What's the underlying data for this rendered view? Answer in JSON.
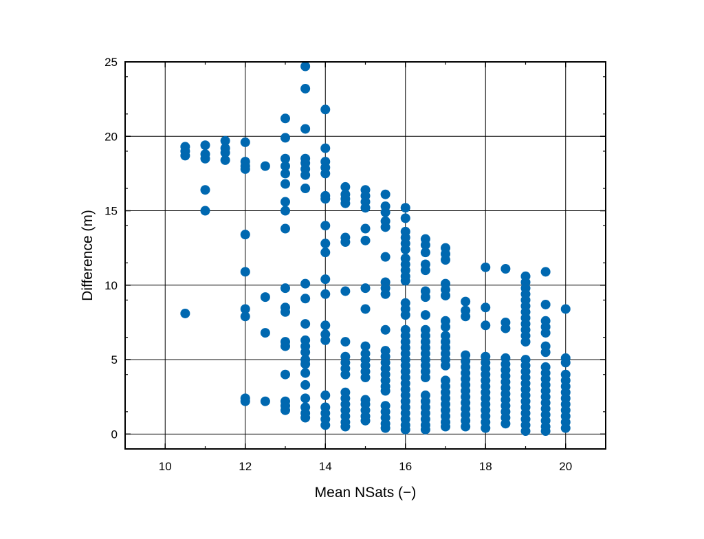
{
  "chart_data": {
    "type": "scatter",
    "title": "",
    "xlabel": "Mean NSats (−)",
    "ylabel": "Difference (m)",
    "xlim": [
      9,
      21
    ],
    "ylim": [
      -1,
      25
    ],
    "xticks": [
      10,
      12,
      14,
      16,
      18,
      20
    ],
    "yticks": [
      0,
      5,
      10,
      15,
      20,
      25
    ],
    "xtick_labels": [
      "10",
      "12",
      "14",
      "16",
      "18",
      "20"
    ],
    "ytick_labels": [
      "0",
      "5",
      "10",
      "15",
      "20",
      "25"
    ],
    "grid": true,
    "marker_color": "#0068b0",
    "series": [
      {
        "points": [
          [
            10.5,
            19.3
          ],
          [
            10.5,
            19.0
          ],
          [
            10.5,
            18.7
          ],
          [
            10.5,
            8.1
          ],
          [
            11,
            19.4
          ],
          [
            11,
            18.8
          ],
          [
            11,
            18.5
          ],
          [
            11,
            16.4
          ],
          [
            11,
            15.0
          ],
          [
            11.5,
            19.7
          ],
          [
            11.5,
            19.2
          ],
          [
            11.5,
            18.9
          ],
          [
            11.5,
            18.4
          ],
          [
            12,
            19.6
          ],
          [
            12,
            18.3
          ],
          [
            12,
            18.0
          ],
          [
            12,
            17.8
          ],
          [
            12,
            13.4
          ],
          [
            12,
            10.9
          ],
          [
            12,
            8.4
          ],
          [
            12,
            7.9
          ],
          [
            12,
            2.4
          ],
          [
            12,
            2.2
          ],
          [
            12.5,
            18.0
          ],
          [
            12.5,
            9.2
          ],
          [
            12.5,
            6.8
          ],
          [
            12.5,
            2.2
          ],
          [
            13,
            21.2
          ],
          [
            13,
            19.9
          ],
          [
            13,
            18.5
          ],
          [
            13,
            18.0
          ],
          [
            13,
            17.5
          ],
          [
            13,
            16.8
          ],
          [
            13,
            15.6
          ],
          [
            13,
            15.0
          ],
          [
            13,
            13.8
          ],
          [
            13,
            9.8
          ],
          [
            13,
            8.5
          ],
          [
            13,
            8.2
          ],
          [
            13,
            6.2
          ],
          [
            13,
            5.9
          ],
          [
            13,
            4.0
          ],
          [
            13,
            2.2
          ],
          [
            13,
            1.9
          ],
          [
            13,
            1.6
          ],
          [
            13.5,
            24.7
          ],
          [
            13.5,
            23.2
          ],
          [
            13.5,
            20.5
          ],
          [
            13.5,
            18.5
          ],
          [
            13.5,
            18.2
          ],
          [
            13.5,
            17.8
          ],
          [
            13.5,
            17.4
          ],
          [
            13.5,
            16.5
          ],
          [
            13.5,
            10.1
          ],
          [
            13.5,
            9.1
          ],
          [
            13.5,
            7.4
          ],
          [
            13.5,
            6.3
          ],
          [
            13.5,
            5.9
          ],
          [
            13.5,
            5.5
          ],
          [
            13.5,
            5.0
          ],
          [
            13.5,
            4.7
          ],
          [
            13.5,
            4.1
          ],
          [
            13.5,
            3.3
          ],
          [
            13.5,
            2.4
          ],
          [
            13.5,
            1.8
          ],
          [
            13.5,
            1.4
          ],
          [
            13.5,
            1.1
          ],
          [
            14,
            21.8
          ],
          [
            14,
            19.2
          ],
          [
            14,
            18.3
          ],
          [
            14,
            17.9
          ],
          [
            14,
            17.5
          ],
          [
            14,
            16.0
          ],
          [
            14,
            15.8
          ],
          [
            14,
            14.0
          ],
          [
            14,
            12.8
          ],
          [
            14,
            12.2
          ],
          [
            14,
            10.4
          ],
          [
            14,
            9.4
          ],
          [
            14,
            7.3
          ],
          [
            14,
            6.7
          ],
          [
            14,
            6.3
          ],
          [
            14,
            2.6
          ],
          [
            14,
            1.8
          ],
          [
            14,
            1.4
          ],
          [
            14,
            1.0
          ],
          [
            14,
            0.6
          ],
          [
            14.5,
            16.6
          ],
          [
            14.5,
            16.1
          ],
          [
            14.5,
            15.8
          ],
          [
            14.5,
            15.5
          ],
          [
            14.5,
            13.2
          ],
          [
            14.5,
            12.9
          ],
          [
            14.5,
            9.6
          ],
          [
            14.5,
            6.2
          ],
          [
            14.5,
            5.2
          ],
          [
            14.5,
            4.8
          ],
          [
            14.5,
            4.4
          ],
          [
            14.5,
            4.0
          ],
          [
            14.5,
            2.8
          ],
          [
            14.5,
            2.4
          ],
          [
            14.5,
            2.0
          ],
          [
            14.5,
            1.6
          ],
          [
            14.5,
            1.2
          ],
          [
            14.5,
            0.8
          ],
          [
            14.5,
            0.5
          ],
          [
            15,
            16.4
          ],
          [
            15,
            16.0
          ],
          [
            15,
            15.6
          ],
          [
            15,
            15.2
          ],
          [
            15,
            13.8
          ],
          [
            15,
            13.0
          ],
          [
            15,
            9.8
          ],
          [
            15,
            8.4
          ],
          [
            15,
            5.9
          ],
          [
            15,
            5.4
          ],
          [
            15,
            5.0
          ],
          [
            15,
            4.6
          ],
          [
            15,
            4.2
          ],
          [
            15,
            3.8
          ],
          [
            15,
            2.3
          ],
          [
            15,
            2.0
          ],
          [
            15,
            1.6
          ],
          [
            15,
            1.2
          ],
          [
            15,
            0.9
          ],
          [
            15.5,
            16.1
          ],
          [
            15.5,
            15.3
          ],
          [
            15.5,
            14.9
          ],
          [
            15.5,
            14.3
          ],
          [
            15.5,
            13.9
          ],
          [
            15.5,
            11.9
          ],
          [
            15.5,
            10.2
          ],
          [
            15.5,
            9.8
          ],
          [
            15.5,
            9.4
          ],
          [
            15.5,
            7.0
          ],
          [
            15.5,
            5.6
          ],
          [
            15.5,
            5.2
          ],
          [
            15.5,
            4.8
          ],
          [
            15.5,
            4.4
          ],
          [
            15.5,
            4.0
          ],
          [
            15.5,
            3.6
          ],
          [
            15.5,
            3.2
          ],
          [
            15.5,
            2.9
          ],
          [
            15.5,
            1.9
          ],
          [
            15.5,
            1.5
          ],
          [
            15.5,
            1.1
          ],
          [
            15.5,
            0.7
          ],
          [
            15.5,
            0.4
          ],
          [
            16,
            15.2
          ],
          [
            16,
            14.5
          ],
          [
            16,
            13.6
          ],
          [
            16,
            13.2
          ],
          [
            16,
            12.8
          ],
          [
            16,
            12.4
          ],
          [
            16,
            11.8
          ],
          [
            16,
            11.4
          ],
          [
            16,
            11.0
          ],
          [
            16,
            10.6
          ],
          [
            16,
            10.3
          ],
          [
            16,
            8.8
          ],
          [
            16,
            8.4
          ],
          [
            16,
            8.0
          ],
          [
            16,
            7.0
          ],
          [
            16,
            6.6
          ],
          [
            16,
            6.2
          ],
          [
            16,
            5.8
          ],
          [
            16,
            5.4
          ],
          [
            16,
            5.0
          ],
          [
            16,
            4.6
          ],
          [
            16,
            4.2
          ],
          [
            16,
            3.8
          ],
          [
            16,
            3.4
          ],
          [
            16,
            3.0
          ],
          [
            16,
            2.6
          ],
          [
            16,
            2.2
          ],
          [
            16,
            1.8
          ],
          [
            16,
            1.4
          ],
          [
            16,
            1.0
          ],
          [
            16,
            0.6
          ],
          [
            16,
            0.3
          ],
          [
            16.5,
            13.1
          ],
          [
            16.5,
            12.7
          ],
          [
            16.5,
            12.2
          ],
          [
            16.5,
            11.4
          ],
          [
            16.5,
            11.0
          ],
          [
            16.5,
            9.6
          ],
          [
            16.5,
            9.2
          ],
          [
            16.5,
            8.0
          ],
          [
            16.5,
            7.0
          ],
          [
            16.5,
            6.6
          ],
          [
            16.5,
            6.2
          ],
          [
            16.5,
            5.8
          ],
          [
            16.5,
            5.4
          ],
          [
            16.5,
            5.0
          ],
          [
            16.5,
            4.6
          ],
          [
            16.5,
            4.2
          ],
          [
            16.5,
            3.8
          ],
          [
            16.5,
            2.6
          ],
          [
            16.5,
            2.2
          ],
          [
            16.5,
            1.8
          ],
          [
            16.5,
            1.4
          ],
          [
            16.5,
            1.0
          ],
          [
            16.5,
            0.6
          ],
          [
            16.5,
            0.3
          ],
          [
            17,
            12.5
          ],
          [
            17,
            12.1
          ],
          [
            17,
            11.7
          ],
          [
            17,
            10.1
          ],
          [
            17,
            9.7
          ],
          [
            17,
            9.3
          ],
          [
            17,
            7.6
          ],
          [
            17,
            7.2
          ],
          [
            17,
            6.6
          ],
          [
            17,
            6.2
          ],
          [
            17,
            5.8
          ],
          [
            17,
            5.4
          ],
          [
            17,
            5.0
          ],
          [
            17,
            4.6
          ],
          [
            17,
            3.6
          ],
          [
            17,
            3.2
          ],
          [
            17,
            2.8
          ],
          [
            17,
            2.4
          ],
          [
            17,
            2.0
          ],
          [
            17,
            1.6
          ],
          [
            17,
            1.2
          ],
          [
            17,
            0.8
          ],
          [
            17,
            0.5
          ],
          [
            17.5,
            8.9
          ],
          [
            17.5,
            8.3
          ],
          [
            17.5,
            7.9
          ],
          [
            17.5,
            5.3
          ],
          [
            17.5,
            4.9
          ],
          [
            17.5,
            4.5
          ],
          [
            17.5,
            4.1
          ],
          [
            17.5,
            3.7
          ],
          [
            17.5,
            3.3
          ],
          [
            17.5,
            2.9
          ],
          [
            17.5,
            2.5
          ],
          [
            17.5,
            2.1
          ],
          [
            17.5,
            1.7
          ],
          [
            17.5,
            1.3
          ],
          [
            17.5,
            0.9
          ],
          [
            17.5,
            0.5
          ],
          [
            18,
            11.2
          ],
          [
            18,
            8.5
          ],
          [
            18,
            7.3
          ],
          [
            18,
            5.2
          ],
          [
            18,
            4.8
          ],
          [
            18,
            4.4
          ],
          [
            18,
            4.0
          ],
          [
            18,
            3.6
          ],
          [
            18,
            3.2
          ],
          [
            18,
            2.8
          ],
          [
            18,
            2.4
          ],
          [
            18,
            2.0
          ],
          [
            18,
            1.6
          ],
          [
            18,
            1.2
          ],
          [
            18,
            0.8
          ],
          [
            18,
            0.4
          ],
          [
            18.5,
            11.1
          ],
          [
            18.5,
            7.5
          ],
          [
            18.5,
            7.1
          ],
          [
            18.5,
            5.1
          ],
          [
            18.5,
            4.7
          ],
          [
            18.5,
            4.3
          ],
          [
            18.5,
            3.9
          ],
          [
            18.5,
            3.5
          ],
          [
            18.5,
            3.1
          ],
          [
            18.5,
            2.7
          ],
          [
            18.5,
            2.3
          ],
          [
            18.5,
            1.9
          ],
          [
            18.5,
            1.5
          ],
          [
            18.5,
            1.1
          ],
          [
            18.5,
            0.7
          ],
          [
            19,
            10.6
          ],
          [
            19,
            10.2
          ],
          [
            19,
            9.8
          ],
          [
            19,
            9.4
          ],
          [
            19,
            9.0
          ],
          [
            19,
            8.6
          ],
          [
            19,
            8.2
          ],
          [
            19,
            7.8
          ],
          [
            19,
            7.4
          ],
          [
            19,
            7.0
          ],
          [
            19,
            6.6
          ],
          [
            19,
            6.2
          ],
          [
            19,
            5.0
          ],
          [
            19,
            4.6
          ],
          [
            19,
            4.2
          ],
          [
            19,
            3.8
          ],
          [
            19,
            3.4
          ],
          [
            19,
            3.0
          ],
          [
            19,
            2.6
          ],
          [
            19,
            2.2
          ],
          [
            19,
            1.8
          ],
          [
            19,
            1.4
          ],
          [
            19,
            1.0
          ],
          [
            19,
            0.6
          ],
          [
            19,
            0.2
          ],
          [
            19.5,
            10.9
          ],
          [
            19.5,
            8.7
          ],
          [
            19.5,
            7.6
          ],
          [
            19.5,
            7.2
          ],
          [
            19.5,
            6.8
          ],
          [
            19.5,
            5.9
          ],
          [
            19.5,
            5.5
          ],
          [
            19.5,
            4.5
          ],
          [
            19.5,
            4.1
          ],
          [
            19.5,
            3.7
          ],
          [
            19.5,
            3.3
          ],
          [
            19.5,
            2.9
          ],
          [
            19.5,
            2.5
          ],
          [
            19.5,
            2.1
          ],
          [
            19.5,
            1.7
          ],
          [
            19.5,
            1.3
          ],
          [
            19.5,
            0.9
          ],
          [
            19.5,
            0.5
          ],
          [
            19.5,
            0.2
          ],
          [
            20,
            8.4
          ],
          [
            20,
            5.1
          ],
          [
            20,
            4.8
          ],
          [
            20,
            4.0
          ],
          [
            20,
            3.6
          ],
          [
            20,
            3.2
          ],
          [
            20,
            2.8
          ],
          [
            20,
            2.4
          ],
          [
            20,
            2.0
          ],
          [
            20,
            1.6
          ],
          [
            20,
            1.2
          ],
          [
            20,
            0.8
          ],
          [
            20,
            0.4
          ]
        ]
      }
    ]
  }
}
